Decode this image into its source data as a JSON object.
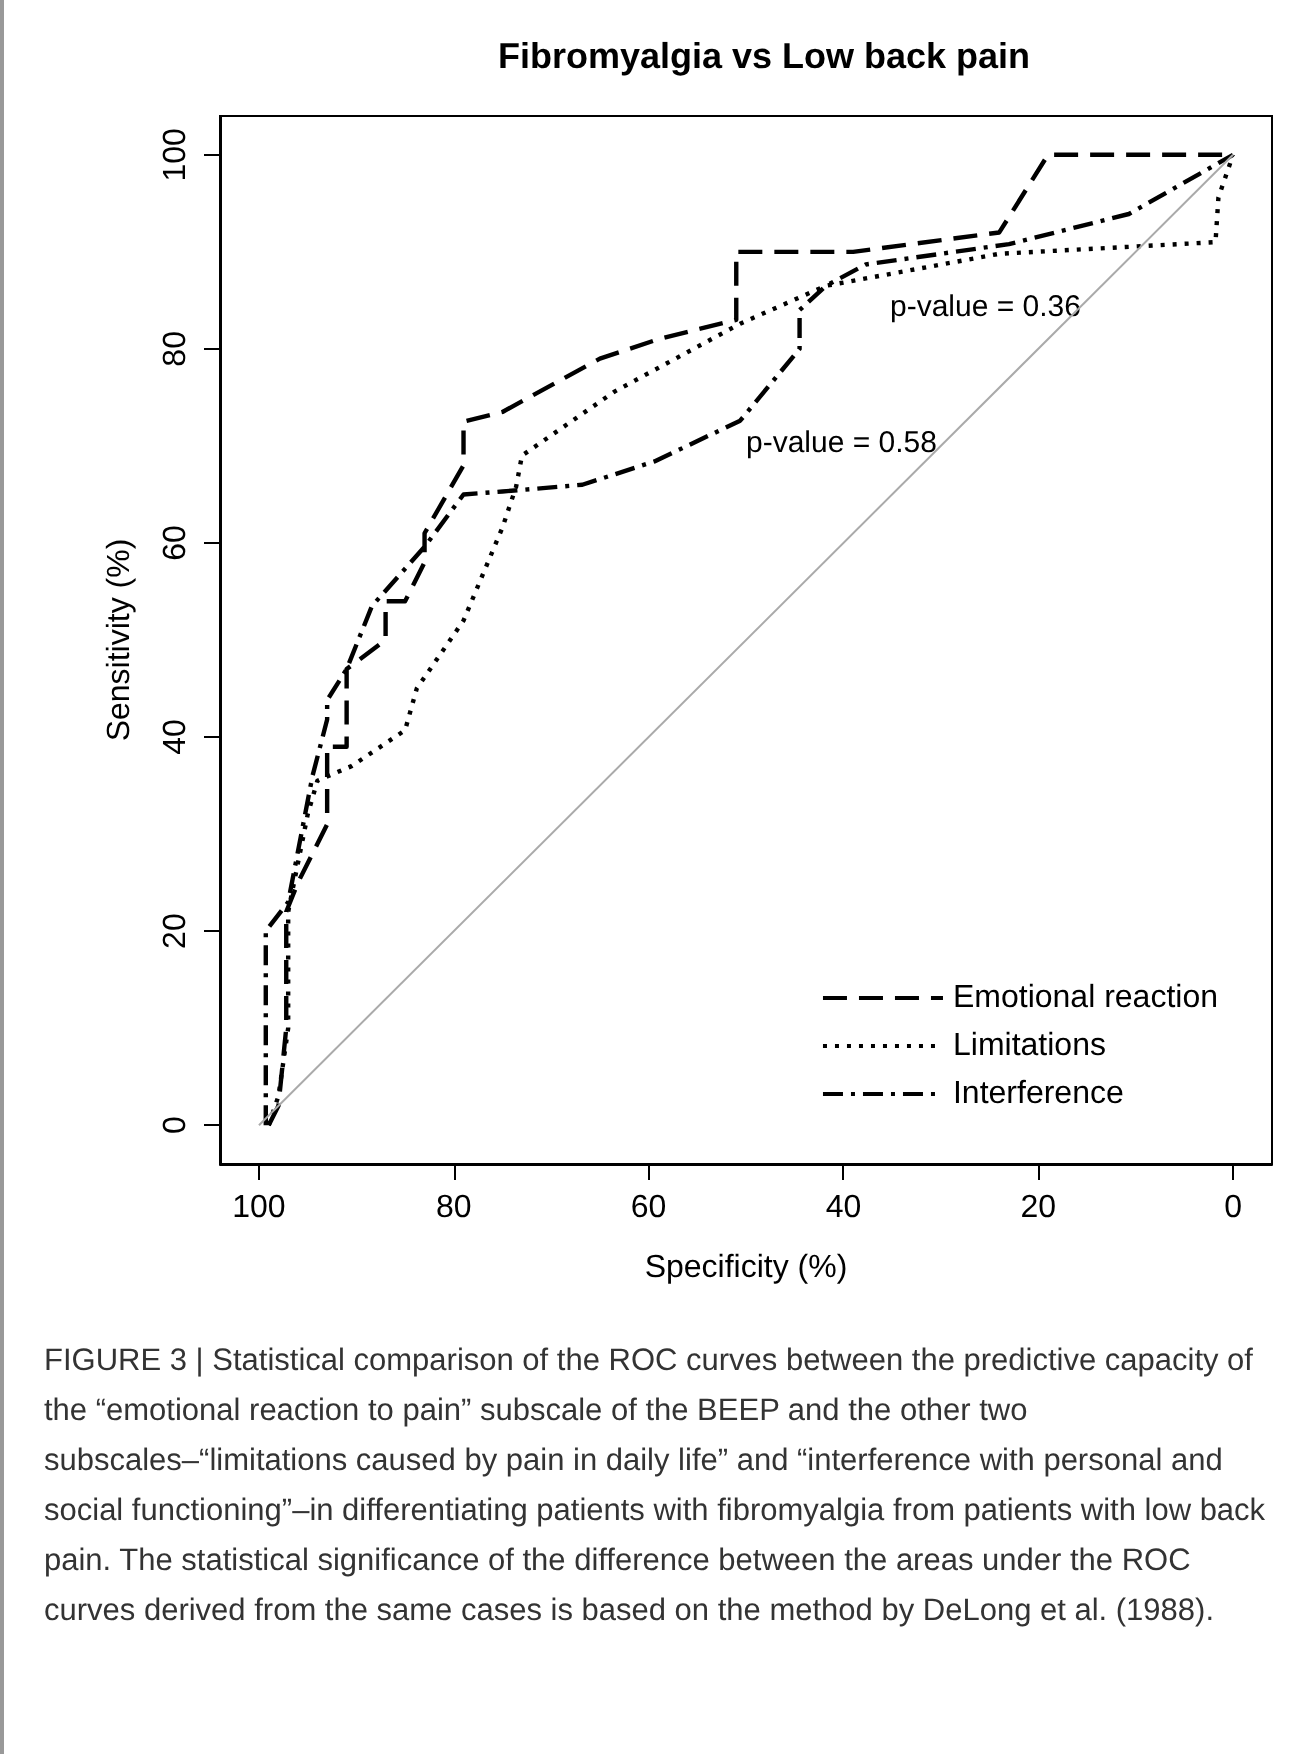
{
  "chart_data": {
    "type": "line",
    "title": "Fibromyalgia vs Low back pain",
    "xlabel": "Specificity (%)",
    "ylabel": "Sensitivity (%)",
    "xlim": [
      104,
      -4
    ],
    "ylim": [
      -4,
      104
    ],
    "xticks": [
      100,
      80,
      60,
      40,
      20,
      0
    ],
    "yticks": [
      0,
      20,
      40,
      60,
      80,
      100
    ],
    "grid": false,
    "legend": "bottom right",
    "marker": "none",
    "series": [
      {
        "name": "Emotional reaction",
        "color": "#000000",
        "line_style": "dashed",
        "x": [
          99,
          98,
          97.2,
          97.2,
          96,
          93,
          93,
          91,
          91,
          87,
          87,
          85,
          83,
          83,
          79,
          79,
          75,
          65,
          59,
          51,
          51,
          39,
          24,
          19,
          0
        ],
        "values": [
          0,
          2,
          10,
          22,
          25,
          31,
          39,
          39,
          47,
          50,
          54,
          54,
          58,
          61,
          68,
          72.5,
          73.5,
          79,
          81,
          83,
          90,
          90,
          92,
          100,
          100
        ]
      },
      {
        "name": "Limitations",
        "color": "#000000",
        "line_style": "dotted",
        "x": [
          99,
          98,
          97,
          97,
          95,
          94,
          90.5,
          85,
          83.8,
          79,
          75,
          73.6,
          73,
          63.5,
          50.6,
          41.8,
          24,
          1.8,
          1.5,
          0
        ],
        "values": [
          0,
          3,
          10,
          22,
          32,
          35.5,
          37,
          40.7,
          45,
          52,
          61.6,
          65.8,
          69,
          75.6,
          82.6,
          86.5,
          89.8,
          91,
          95.6,
          100
        ]
      },
      {
        "name": "Interference",
        "color": "#000000",
        "line_style": "dashdot",
        "x": [
          99.3,
          99.3,
          97,
          94.5,
          93,
          93,
          91,
          88.4,
          83,
          79,
          75,
          66.8,
          59.4,
          50.6,
          44.5,
          44.5,
          41.8,
          37.7,
          23,
          10.7,
          0
        ],
        "values": [
          0,
          20,
          23,
          36,
          41.8,
          43.8,
          47,
          53.5,
          59.6,
          65,
          65.3,
          66,
          68.4,
          72.6,
          80,
          84,
          86.5,
          88.7,
          90.8,
          93.9,
          100
        ]
      },
      {
        "color": "#aaaaaa",
        "line_style": "solid",
        "x": [
          100,
          0
        ],
        "values": [
          0,
          100
        ]
      }
    ],
    "annotations": [
      "p-value = 0.36",
      "p-value = 0.58",
      "FIGURE 3 | Statistical comparison of the ROC curves between the predictive capacity of the “emotional reaction to pain” subscale of the BEEP and the other two subscales–“limitations caused by pain in daily life” and “interference with personal and social functioning”–in differentiating patients with fibromyalgia from patients with low back pain. The statistical significance of the difference between the areas under the ROC curves derived from the same cases is based on the method by DeLong et al. (1988)."
    ]
  }
}
